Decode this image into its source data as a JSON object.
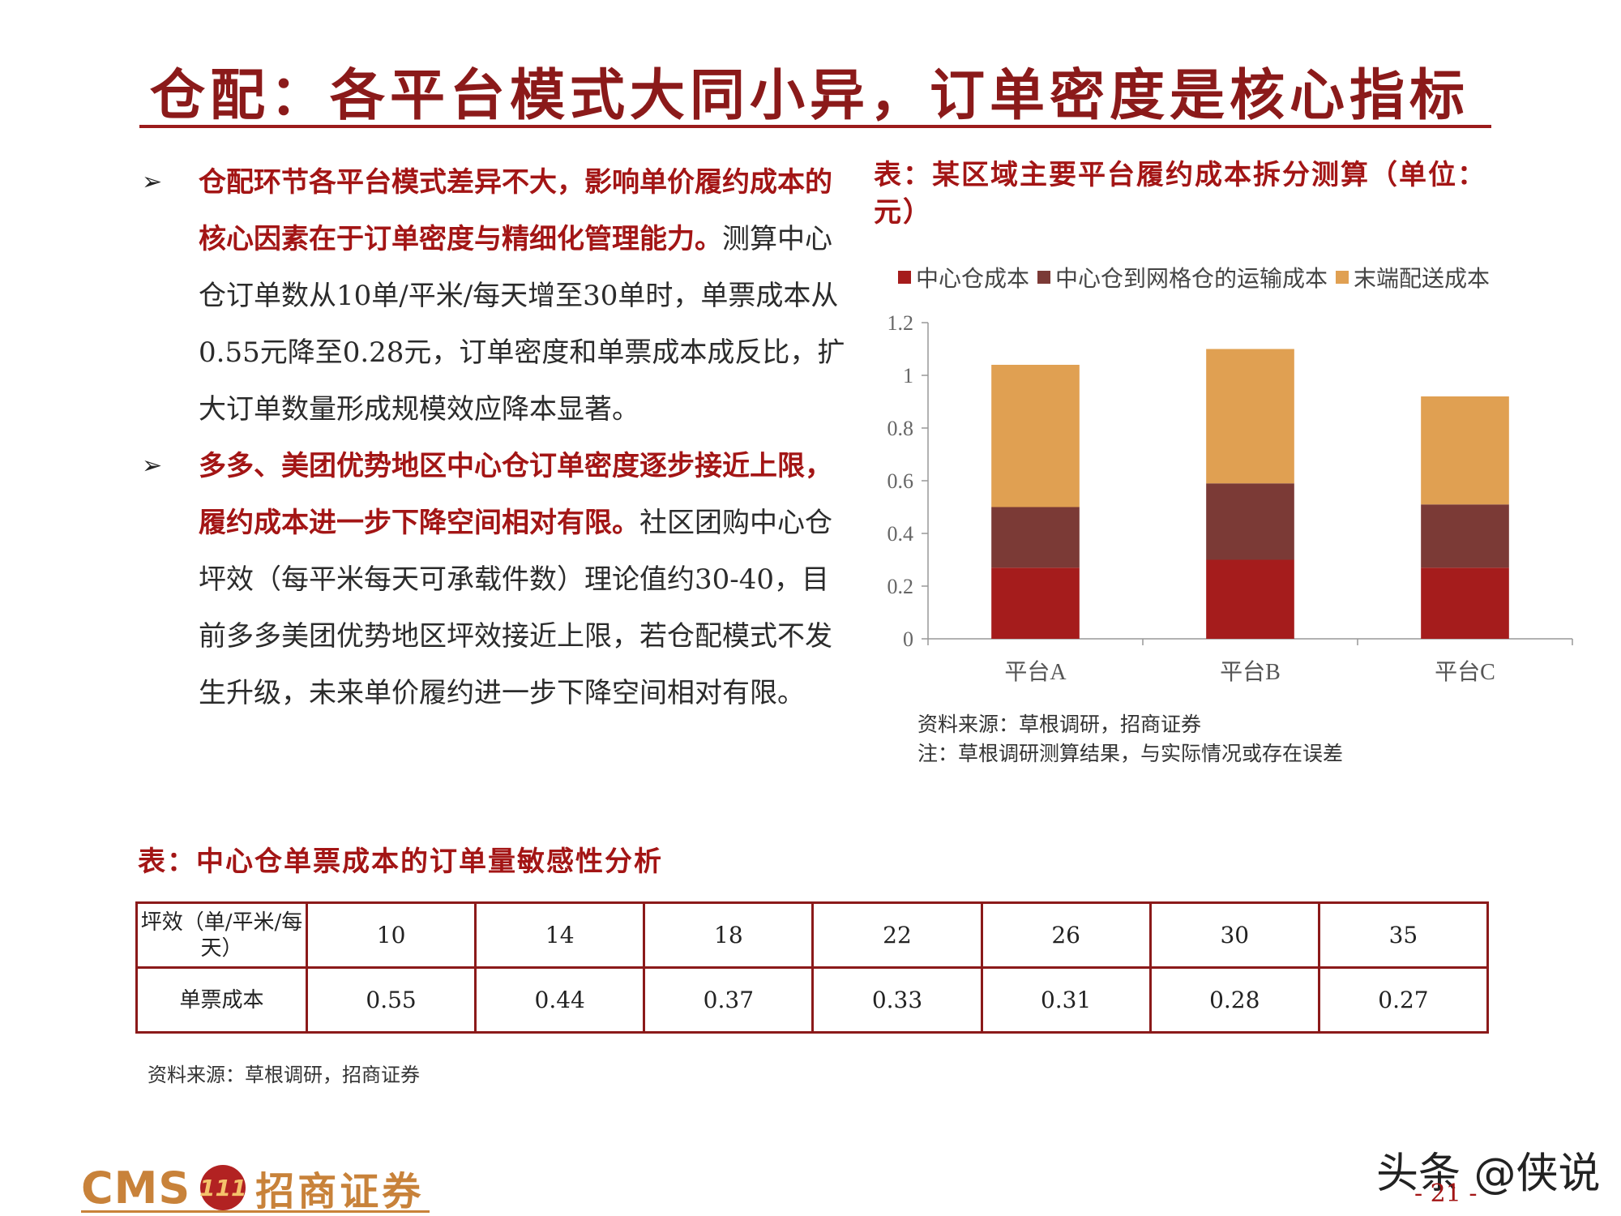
{
  "header": {
    "title": "仓配：各平台模式大同小异，订单密度是核心指标"
  },
  "bullets": [
    {
      "highlight": "仓配环节各平台模式差异不大，影响单价履约成本的核心因素在于订单密度与精细化管理能力。",
      "body": "测算中心仓订单数从10单/平米/每天增至30单时，单票成本从0.55元降至0.28元，订单密度和单票成本成反比，扩大订单数量形成规模效应降本显著。"
    },
    {
      "highlight": "多多、美团优势地区中心仓订单密度逐步接近上限，履约成本进一步下降空间相对有限。",
      "body": "社区团购中心仓坪效（每平米每天可承载件数）理论值约30-40，目前多多美团优势地区坪效接近上限，若仓配模式不发生升级，未来单价履约进一步下降空间相对有限。"
    }
  ],
  "sensitivity_table": {
    "title": "表：中心仓单票成本的订单量敏感性分析",
    "row1_label": "坪效（单/平米/每天）",
    "row2_label": "单票成本",
    "columns": [
      "10",
      "14",
      "18",
      "22",
      "26",
      "30",
      "35"
    ],
    "values": [
      "0.55",
      "0.44",
      "0.37",
      "0.33",
      "0.31",
      "0.28",
      "0.27"
    ],
    "source": "资料来源：草根调研，招商证券"
  },
  "chart_title": "表：某区域主要平台履约成本拆分测算（单位：元）",
  "chart_data": {
    "type": "bar",
    "stacked": true,
    "categories": [
      "平台A",
      "平台B",
      "平台C"
    ],
    "series": [
      {
        "name": "中心仓成本",
        "values": [
          0.27,
          0.3,
          0.27
        ],
        "color": "#a51c1c"
      },
      {
        "name": "中心仓到网格仓的运输成本",
        "values": [
          0.23,
          0.29,
          0.24
        ],
        "color": "#7b3a36"
      },
      {
        "name": "末端配送成本",
        "values": [
          0.54,
          0.51,
          0.41
        ],
        "color": "#e0a052"
      }
    ],
    "ylim": [
      0,
      1.2
    ],
    "yticks": [
      "0",
      "0.2",
      "0.4",
      "0.6",
      "0.8",
      "1",
      "1.2"
    ],
    "legend": "top",
    "grid": false
  },
  "chart_notes": {
    "source": "资料来源：草根调研，招商证券",
    "note": "注：草根调研测算结果，与实际情况或存在误差"
  },
  "footer": {
    "logo_text": "CMS",
    "logo_mark": "111",
    "company_name": "招商证券",
    "watermark": "头条 @侠说",
    "page_number": "- 21 -"
  },
  "colors": {
    "accent": "#a31515",
    "brand_gold": "#c8823a"
  }
}
